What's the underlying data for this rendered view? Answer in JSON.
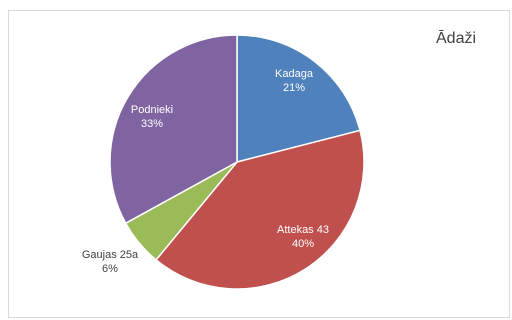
{
  "chart_data": {
    "type": "pie",
    "title": "Ādaži",
    "legend": "none",
    "slices": [
      {
        "name": "Kadaga",
        "percent_label": "21%",
        "value": 21,
        "color": "#4F81BD",
        "label_color": "#ffffff"
      },
      {
        "name": "Attekas 43",
        "percent_label": "40%",
        "value": 40,
        "color": "#C0504D",
        "label_color": "#ffffff"
      },
      {
        "name": "Gaujas 25a",
        "percent_label": "6%",
        "value": 6,
        "color": "#9BBB59",
        "label_color": "#404040"
      },
      {
        "name": "Podnieki",
        "percent_label": "33%",
        "value": 33,
        "color": "#8064A2",
        "label_color": "#ffffff"
      }
    ]
  }
}
